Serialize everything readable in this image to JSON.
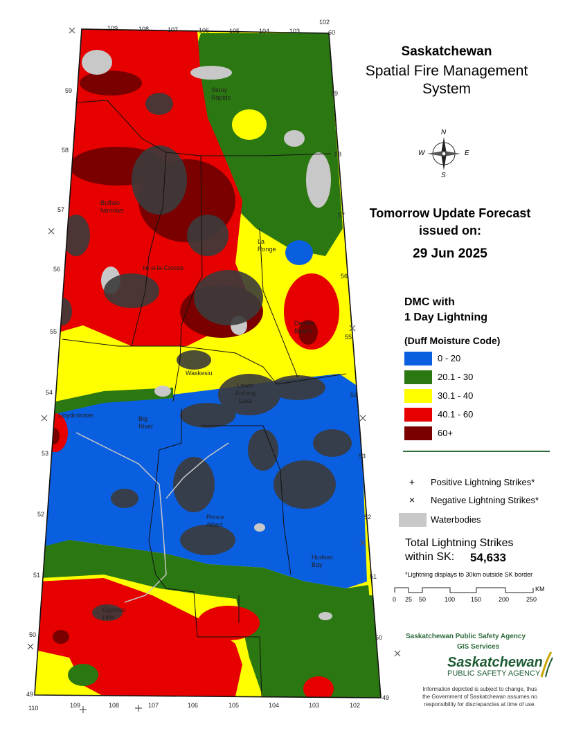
{
  "header": {
    "title": "Saskatchewan",
    "subtitle_line1": "Spatial Fire Management",
    "subtitle_line2": "System"
  },
  "forecast": {
    "line1": "Tomorrow Update Forecast",
    "line2": "issued on:",
    "date": "29 Jun 2025"
  },
  "legend": {
    "title_line1": "DMC with",
    "title_line2": "1 Day Lightning",
    "subtitle": "(Duff Moisture Code)",
    "classes": [
      {
        "label": "0 - 20",
        "color": "#0a5ee0"
      },
      {
        "label": "20.1 - 30",
        "color": "#2b7812"
      },
      {
        "label": "30.1 - 40",
        "color": "#ffff00"
      },
      {
        "label": "40.1 - 60",
        "color": "#e60000"
      },
      {
        "label": "60+",
        "color": "#7a0000"
      }
    ],
    "positive_symbol": "+",
    "positive_label": "Positive Lightning Strikes*",
    "negative_symbol": "×",
    "negative_label": "Negative Lightning Strikes*",
    "waterbodies_label": "Waterbodies"
  },
  "totals": {
    "label_line1": "Total Lightning Strikes",
    "label_line2": "within SK:",
    "value": "54,633",
    "note": "*Lightning displays to 30km outside SK border"
  },
  "scale": {
    "unit": "KM",
    "ticks": [
      "0",
      "25",
      "50",
      "100",
      "150",
      "200",
      "250"
    ]
  },
  "agency": {
    "line1": "Saskatchewan Public Safety Agency",
    "line2": "GIS  Services",
    "logo_line1": "Saskatchewan",
    "logo_line2": "PUBLIC SAFETY AGENCY"
  },
  "disclaimer": {
    "line1": "Information depicted is subject to change, thus",
    "line2": "the Government of Saskatchewan assumes no",
    "line3": "responsibility for discrepancies at time of use."
  },
  "map": {
    "longitudes_top": [
      "109",
      "108",
      "107",
      "106",
      "105",
      "104",
      "103",
      "102"
    ],
    "longitudes_bottom": [
      "110",
      "109",
      "108",
      "107",
      "106",
      "105",
      "104",
      "103",
      "102"
    ],
    "latitudes_left": [
      "59",
      "58",
      "57",
      "56",
      "55",
      "54",
      "53",
      "52",
      "51",
      "50",
      "49"
    ],
    "latitudes_right": [
      "60",
      "59",
      "58",
      "57",
      "56",
      "55",
      "54",
      "53",
      "52",
      "51",
      "50",
      "49"
    ],
    "places": {
      "stony_rapids": [
        "Stony",
        "Rapids"
      ],
      "buffalo_narrows": [
        "Buffalo",
        "Narrows"
      ],
      "ile_a_la_crosse": "Ile-a-la-Crosse",
      "la_ronge": [
        "La",
        "Ronge"
      ],
      "creighton": [
        "Denare",
        "Beach"
      ],
      "waskesiu": "Waskesiu",
      "lower_fishing_lake": [
        "Lower",
        "Fishing",
        "Lake"
      ],
      "lloydminster": "Lloydminster",
      "big_river": [
        "Big",
        "River"
      ],
      "prince_albert": [
        "Prince",
        "Albert"
      ],
      "hudson_bay": [
        "Hudson",
        "Bay"
      ],
      "cypress_hills": [
        "Cypress",
        "Hills"
      ]
    },
    "compass_letters": [
      "N",
      "E",
      "S",
      "W"
    ]
  }
}
